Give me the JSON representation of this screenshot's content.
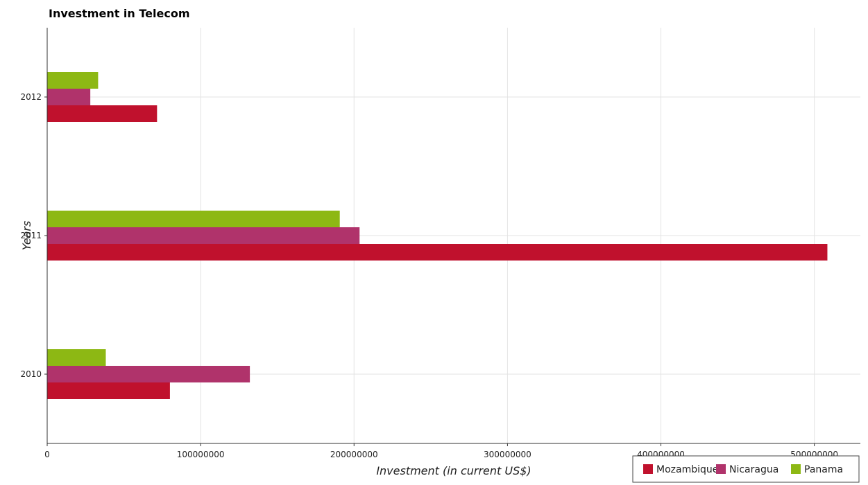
{
  "chart_data": {
    "type": "bar",
    "orientation": "horizontal",
    "title": "Investment in Telecom",
    "xlabel": "Investment (in current US$)",
    "ylabel": "Years",
    "categories": [
      "2010",
      "2011",
      "2012"
    ],
    "series": [
      {
        "name": "Mozambique",
        "color": "#c0112d",
        "values": [
          80000000,
          508500000,
          71600000
        ]
      },
      {
        "name": "Nicaragua",
        "color": "#b0336b",
        "values": [
          132100000,
          203600000,
          28100000
        ]
      },
      {
        "name": "Panama",
        "color": "#8db814",
        "values": [
          38200000,
          190700000,
          33200000
        ]
      }
    ],
    "xlim": [
      0,
      530000000
    ],
    "xticks": [
      0,
      100000000,
      200000000,
      300000000,
      400000000,
      500000000
    ],
    "xtick_labels": [
      "0",
      "100000000",
      "200000000",
      "300000000",
      "400000000",
      "500000000"
    ],
    "grid": true,
    "legend_position": "bottom-right"
  }
}
